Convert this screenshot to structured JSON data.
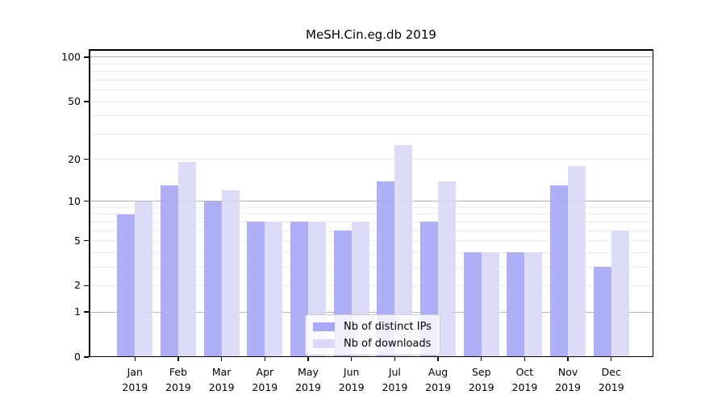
{
  "title": "MeSH.Cin.eg.db 2019",
  "style": {
    "background": "#ffffff",
    "axis_color": "#000000",
    "grid_minor_color": "#ececec",
    "grid_major_color": "#b5b5b5",
    "legend_border_color": "#cccccc"
  },
  "chart_data": {
    "type": "bar",
    "title": "MeSH.Cin.eg.db 2019",
    "xlabel": "",
    "ylabel": "",
    "x_categories": [
      "Jan",
      "Feb",
      "Mar",
      "Apr",
      "May",
      "Jun",
      "Jul",
      "Aug",
      "Sep",
      "Oct",
      "Nov",
      "Dec"
    ],
    "x_year": "2019",
    "series": [
      {
        "name": "Nb of distinct IPs",
        "color": "#a8a8f6",
        "values": [
          8,
          13,
          10,
          7,
          7,
          6,
          14,
          7,
          4,
          4,
          13,
          3
        ]
      },
      {
        "name": "Nb of downloads",
        "color": "#d9d9f9",
        "values": [
          10,
          19,
          12,
          7,
          7,
          7,
          25,
          14,
          4,
          4,
          18,
          6
        ]
      }
    ],
    "y_axis": {
      "scale": "log1p",
      "ticks": [
        0,
        1,
        2,
        5,
        10,
        20,
        50,
        100
      ],
      "minor_gridlines": [
        3,
        4,
        6,
        7,
        8,
        9,
        30,
        40,
        60,
        70,
        80,
        90
      ],
      "major_gridlines": [
        1,
        10,
        100
      ],
      "ylim": [
        0,
        113
      ]
    },
    "grid": true,
    "legend_position": "lower center"
  }
}
